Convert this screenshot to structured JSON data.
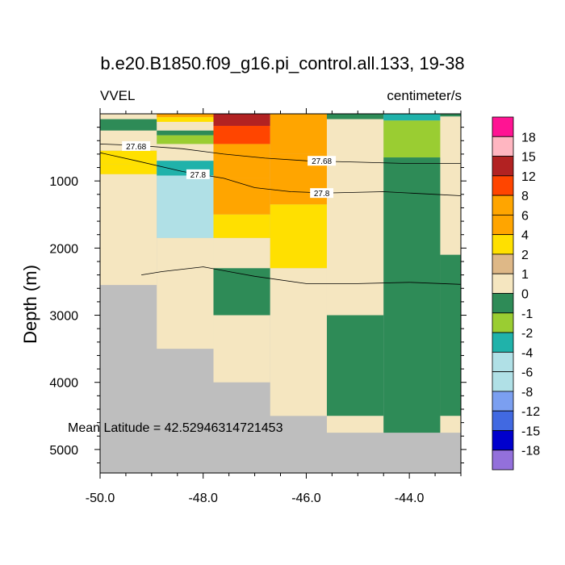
{
  "title": "b.e20.B1850.f09_g16.pi_control.all.133, 19-38",
  "left_string": "VVEL",
  "right_string": "centimeter/s",
  "annotation": "Mean Latitude = 42.52946314721453",
  "chart_data": {
    "type": "heatmap",
    "title": "b.e20.B1850.f09_g16.pi_control.all.133, 19-38",
    "variable": "VVEL",
    "units": "centimeter/s",
    "ylabel": "Depth (m)",
    "xlabel": "",
    "xlim": [
      -50.0,
      -43.0
    ],
    "ylim": [
      5350,
      0
    ],
    "x_ticks": [
      -50.0,
      -48.0,
      -46.0,
      -44.0
    ],
    "x_tick_labels": [
      "-50.0",
      "-48.0",
      "-46.0",
      "-44.0"
    ],
    "y_ticks": [
      1000,
      2000,
      3000,
      4000,
      5000
    ],
    "y_tick_labels": [
      "1000",
      "2000",
      "3000",
      "4000",
      "5000"
    ],
    "missing_color": "#bebebe",
    "colorbar": {
      "levels": [
        -18,
        -15,
        -12,
        -8,
        -6,
        -4,
        -2,
        -1,
        0,
        1,
        2,
        4,
        6,
        8,
        12,
        15,
        18
      ],
      "labels": [
        "18",
        "15",
        "12",
        "8",
        "6",
        "4",
        "2",
        "1",
        "0",
        "-1",
        "-2",
        "-4",
        "-6",
        "-8",
        "-12",
        "-15",
        "-18"
      ],
      "colors": [
        "#9370db",
        "#0000cd",
        "#4169e1",
        "#7b9ff0",
        "#b0e0e6",
        "#b0e0e6",
        "#20b2aa",
        "#9acd32",
        "#2e8b57",
        "#f5e6c0",
        "#deb887",
        "#ffe000",
        "#ffa500",
        "#ffa500",
        "#ff4500",
        "#b22222",
        "#ffb6c1",
        "#ff1493"
      ]
    },
    "x_edges": [
      -50.0,
      -48.9,
      -47.8,
      -46.7,
      -45.6,
      -44.5,
      -43.4,
      -43.0
    ],
    "columns": [
      {
        "x0": -50.0,
        "x1": -48.9,
        "cells": [
          [
            0,
            80,
            0
          ],
          [
            80,
            250,
            -1
          ],
          [
            250,
            550,
            0
          ],
          [
            550,
            750,
            2
          ],
          [
            750,
            900,
            2
          ],
          [
            900,
            2550,
            0
          ]
        ],
        "bottom": 2550
      },
      {
        "x0": -48.9,
        "x1": -47.8,
        "cells": [
          [
            0,
            50,
            4
          ],
          [
            50,
            120,
            2
          ],
          [
            120,
            250,
            0
          ],
          [
            250,
            320,
            -1
          ],
          [
            320,
            450,
            -2
          ],
          [
            450,
            700,
            0
          ],
          [
            700,
            920,
            -4
          ],
          [
            920,
            1850,
            -6
          ],
          [
            1850,
            3500,
            0
          ]
        ],
        "bottom": 3500
      },
      {
        "x0": -47.8,
        "x1": -46.7,
        "cells": [
          [
            0,
            180,
            12
          ],
          [
            180,
            450,
            8
          ],
          [
            450,
            950,
            6
          ],
          [
            950,
            1500,
            4
          ],
          [
            1500,
            1850,
            2
          ],
          [
            1850,
            2300,
            0
          ],
          [
            2300,
            3000,
            -1
          ],
          [
            3000,
            4000,
            0
          ]
        ],
        "bottom": 4000
      },
      {
        "x0": -46.7,
        "x1": -45.6,
        "cells": [
          [
            0,
            600,
            6
          ],
          [
            600,
            1350,
            4
          ],
          [
            1350,
            2300,
            2
          ],
          [
            2300,
            4500,
            0
          ]
        ],
        "bottom": 4500
      },
      {
        "x0": -45.6,
        "x1": -44.5,
        "cells": [
          [
            0,
            80,
            -1
          ],
          [
            80,
            3000,
            0
          ],
          [
            3000,
            4500,
            -1
          ],
          [
            4500,
            4750,
            0
          ]
        ],
        "bottom": 4750
      },
      {
        "x0": -44.5,
        "x1": -43.4,
        "cells": [
          [
            0,
            100,
            -4
          ],
          [
            100,
            650,
            -2
          ],
          [
            650,
            4750,
            -1
          ]
        ],
        "bottom": 4750
      },
      {
        "x0": -43.4,
        "x1": -43.0,
        "cells": [
          [
            0,
            40,
            -1
          ],
          [
            40,
            2100,
            0
          ],
          [
            2100,
            4500,
            -1
          ],
          [
            4500,
            4750,
            0
          ]
        ],
        "bottom": 4750
      }
    ],
    "contours": [
      {
        "label": "27.68",
        "label_x": -49.3,
        "label_y": 480,
        "points": [
          [
            -50.0,
            450
          ],
          [
            -49.3,
            470
          ],
          [
            -48.4,
            520
          ],
          [
            -47.6,
            600
          ],
          [
            -46.8,
            660
          ],
          [
            -46.0,
            700
          ],
          [
            -45.0,
            720
          ],
          [
            -44.0,
            740
          ],
          [
            -43.0,
            740
          ]
        ]
      },
      {
        "label": "27.68",
        "label_x": -45.7,
        "label_y": 700,
        "points": []
      },
      {
        "label": "27.8",
        "label_x": -48.1,
        "label_y": 900,
        "points": [
          [
            -50.0,
            580
          ],
          [
            -49.3,
            700
          ],
          [
            -48.4,
            860
          ],
          [
            -47.6,
            960
          ],
          [
            -47.0,
            1100
          ],
          [
            -46.3,
            1160
          ],
          [
            -45.6,
            1180
          ],
          [
            -44.5,
            1160
          ],
          [
            -43.5,
            1200
          ],
          [
            -43.0,
            1220
          ]
        ]
      },
      {
        "label": "27.8",
        "label_x": -45.7,
        "label_y": 1180,
        "points": []
      },
      {
        "label": "",
        "label_x": null,
        "label_y": null,
        "points": [
          [
            -49.2,
            2400
          ],
          [
            -48.8,
            2350
          ],
          [
            -48.0,
            2280
          ],
          [
            -47.5,
            2350
          ],
          [
            -47.0,
            2420
          ],
          [
            -46.0,
            2530
          ],
          [
            -45.0,
            2530
          ],
          [
            -44.0,
            2510
          ],
          [
            -43.0,
            2540
          ]
        ]
      },
      {
        "label": "",
        "label_x": null,
        "label_y": null,
        "points": [
          [
            -50.0,
            4000
          ],
          [
            -50.0,
            4000
          ]
        ]
      }
    ]
  }
}
